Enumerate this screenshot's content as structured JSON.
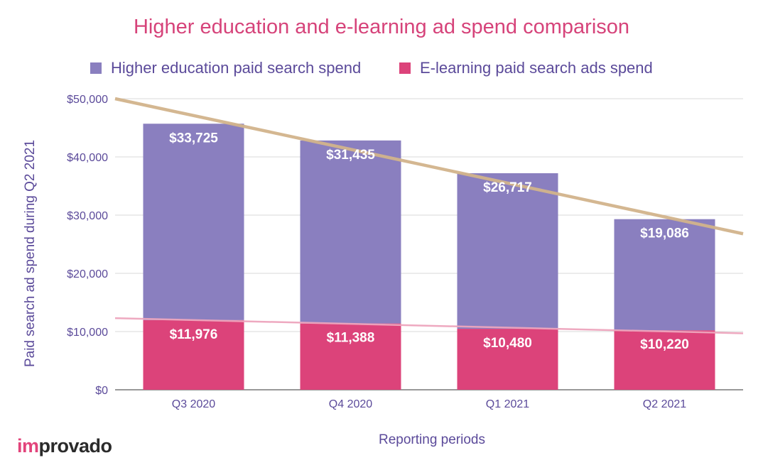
{
  "colors": {
    "higher_ed": "#8a7fbf",
    "elearning": "#dc437a",
    "trend_higher_ed": "#d2b48c",
    "trend_elearning": "#eea5bd",
    "title": "#d6437a",
    "text": "#5b4a9a",
    "grid": "#d9d9d9"
  },
  "logo": {
    "part1": "im",
    "part2": "provado"
  },
  "chart_data": {
    "type": "bar",
    "stacked": true,
    "title": "Higher education and e-learning ad spend comparison",
    "xlabel": "Reporting periods",
    "ylabel": "Paid search ad spend during Q2 2021",
    "categories": [
      "Q3 2020",
      "Q4 2020",
      "Q1 2021",
      "Q2 2021"
    ],
    "ylim": [
      0,
      50000
    ],
    "yticks": [
      0,
      10000,
      20000,
      30000,
      40000,
      50000
    ],
    "ytick_labels": [
      "$0",
      "$10,000",
      "$20,000",
      "$30,000",
      "$40,000",
      "$50,000"
    ],
    "grid": true,
    "legend_position": "top",
    "series": [
      {
        "name": "E-learning paid search ads spend",
        "color_key": "elearning",
        "values": [
          11976,
          11388,
          10480,
          10220
        ],
        "labels": [
          "$11,976",
          "$11,388",
          "$10,480",
          "$10,220"
        ]
      },
      {
        "name": "Higher education paid search spend",
        "color_key": "higher_ed",
        "values": [
          33725,
          31435,
          26717,
          19086
        ],
        "labels": [
          "$33,725",
          "$31,435",
          "$26,717",
          "$19,086"
        ]
      }
    ],
    "legend_order": [
      1,
      0
    ],
    "trendlines": [
      {
        "series": "Higher education paid search spend",
        "type": "linear",
        "on": "stack_total",
        "start_value": 50000,
        "end_value": 26800,
        "color_key": "trend_higher_ed"
      },
      {
        "series": "E-learning paid search ads spend",
        "type": "linear",
        "on": "series",
        "start_value": 12300,
        "end_value": 9700,
        "color_key": "trend_elearning"
      }
    ]
  }
}
